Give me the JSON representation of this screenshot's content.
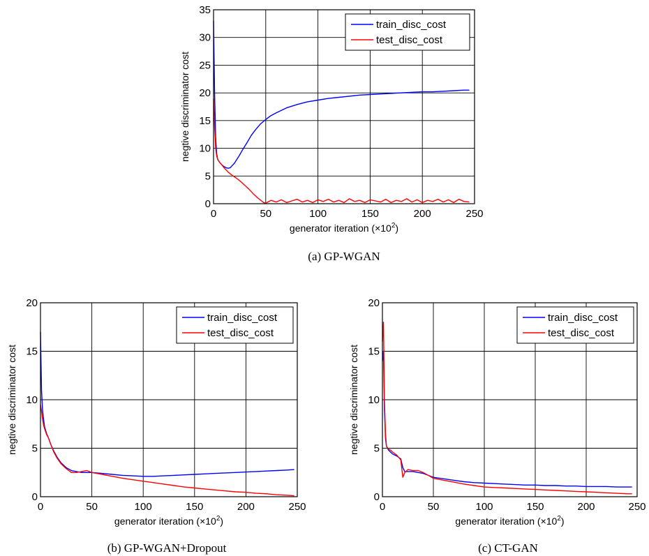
{
  "chart_data": [
    {
      "type": "line",
      "caption": "(a) GP-WGAN",
      "xlabel": "generator iteration (×10",
      "xlabel_sup": "2",
      "xlabel_close": ")",
      "ylabel": "negtive discriminator cost",
      "xlim": [
        0,
        250
      ],
      "ylim": [
        0,
        35
      ],
      "xticks": [
        0,
        50,
        100,
        150,
        200,
        250
      ],
      "yticks": [
        0,
        5,
        10,
        15,
        20,
        25,
        30,
        35
      ],
      "grid": true,
      "legend": "top-right",
      "series": [
        {
          "name": "train_disc_cost",
          "color": "#0000ff",
          "x": [
            0,
            1,
            2,
            3,
            4,
            6,
            8,
            10,
            12,
            14,
            16,
            18,
            20,
            22,
            25,
            28,
            32,
            36,
            40,
            45,
            50,
            55,
            60,
            70,
            80,
            90,
            100,
            110,
            120,
            130,
            140,
            150,
            160,
            170,
            180,
            190,
            200,
            210,
            220,
            230,
            240,
            245
          ],
          "y": [
            33,
            20,
            12,
            9,
            8,
            7.4,
            7,
            6.7,
            6.5,
            6.4,
            6.5,
            6.9,
            7.3,
            7.9,
            8.8,
            9.8,
            11,
            12.3,
            13.3,
            14.4,
            15.2,
            15.9,
            16.4,
            17.3,
            17.9,
            18.4,
            18.7,
            19.0,
            19.2,
            19.4,
            19.6,
            19.7,
            19.8,
            19.9,
            20.0,
            20.1,
            20.2,
            20.2,
            20.3,
            20.4,
            20.5,
            20.5
          ]
        },
        {
          "name": "test_disc_cost",
          "color": "#ff0000",
          "x": [
            0,
            1,
            2,
            3,
            4,
            6,
            8,
            10,
            14,
            18,
            22,
            26,
            30,
            34,
            38,
            42,
            46,
            48,
            50,
            55,
            60,
            65,
            70,
            75,
            80,
            85,
            90,
            95,
            100,
            105,
            110,
            115,
            120,
            125,
            130,
            135,
            140,
            145,
            150,
            155,
            160,
            165,
            170,
            175,
            180,
            185,
            190,
            195,
            200,
            205,
            210,
            215,
            220,
            225,
            230,
            235,
            240,
            245
          ],
          "y": [
            19,
            14,
            10,
            8.6,
            8,
            7.4,
            7.0,
            6.5,
            5.7,
            5.1,
            4.6,
            4.0,
            3.3,
            2.6,
            1.8,
            1.1,
            0.5,
            0.2,
            0.1,
            0.6,
            0.3,
            0.7,
            0.2,
            0.5,
            0.8,
            0.3,
            0.6,
            0.2,
            0.7,
            0.4,
            0.8,
            0.3,
            0.6,
            0.2,
            0.9,
            0.4,
            0.6,
            0.2,
            0.7,
            0.5,
            0.3,
            0.8,
            0.2,
            0.6,
            0.4,
            0.9,
            0.3,
            0.7,
            0.2,
            0.6,
            0.4,
            0.8,
            0.3,
            0.7,
            0.2,
            0.8,
            0.4,
            0.3
          ]
        }
      ]
    },
    {
      "type": "line",
      "caption": "(b) GP-WGAN+Dropout",
      "xlabel": "generator iteration (×10",
      "xlabel_sup": "2",
      "xlabel_close": ")",
      "ylabel": "negtive discriminator cost",
      "xlim": [
        0,
        250
      ],
      "ylim": [
        0,
        20
      ],
      "xticks": [
        0,
        50,
        100,
        150,
        200,
        250
      ],
      "yticks": [
        0,
        5,
        10,
        15,
        20
      ],
      "grid": true,
      "legend": "top-right",
      "series": [
        {
          "name": "train_disc_cost",
          "color": "#0000ff",
          "x": [
            0,
            1,
            2,
            3,
            4,
            6,
            8,
            10,
            13,
            16,
            20,
            25,
            30,
            35,
            40,
            45,
            50,
            60,
            70,
            80,
            90,
            100,
            110,
            120,
            130,
            140,
            150,
            160,
            170,
            180,
            190,
            200,
            210,
            220,
            230,
            240,
            247
          ],
          "y": [
            17,
            11,
            9,
            8,
            7.2,
            6.5,
            6.0,
            5.4,
            4.7,
            4.1,
            3.5,
            3.0,
            2.7,
            2.6,
            2.5,
            2.5,
            2.5,
            2.4,
            2.3,
            2.2,
            2.15,
            2.1,
            2.1,
            2.15,
            2.2,
            2.25,
            2.3,
            2.35,
            2.4,
            2.45,
            2.5,
            2.55,
            2.6,
            2.65,
            2.7,
            2.75,
            2.8
          ]
        },
        {
          "name": "test_disc_cost",
          "color": "#ff0000",
          "x": [
            0,
            1,
            2,
            3,
            4,
            6,
            8,
            10,
            13,
            16,
            20,
            25,
            30,
            35,
            40,
            45,
            50,
            60,
            70,
            80,
            90,
            100,
            110,
            120,
            130,
            140,
            150,
            160,
            170,
            180,
            190,
            200,
            210,
            220,
            230,
            240,
            247
          ],
          "y": [
            9.5,
            8.8,
            8.0,
            7.4,
            7.0,
            6.4,
            6.0,
            5.4,
            4.6,
            4.0,
            3.4,
            2.9,
            2.5,
            2.5,
            2.6,
            2.7,
            2.5,
            2.3,
            2.1,
            1.9,
            1.75,
            1.6,
            1.45,
            1.3,
            1.15,
            1.0,
            0.9,
            0.8,
            0.7,
            0.6,
            0.5,
            0.45,
            0.35,
            0.3,
            0.2,
            0.15,
            0.1
          ]
        }
      ]
    },
    {
      "type": "line",
      "caption": "(c) CT-GAN",
      "xlabel": "generator iteration (×10",
      "xlabel_sup": "2",
      "xlabel_close": ")",
      "ylabel": "negtive discriminator cost",
      "xlim": [
        0,
        250
      ],
      "ylim": [
        0,
        20
      ],
      "xticks": [
        0,
        50,
        100,
        150,
        200,
        250
      ],
      "yticks": [
        0,
        5,
        10,
        15,
        20
      ],
      "grid": true,
      "legend": "top-right",
      "series": [
        {
          "name": "train_disc_cost",
          "color": "#0000ff",
          "x": [
            0,
            1,
            2,
            3,
            4,
            6,
            8,
            10,
            14,
            18,
            20,
            22,
            25,
            30,
            35,
            40,
            45,
            50,
            60,
            70,
            80,
            90,
            100,
            110,
            120,
            130,
            140,
            150,
            160,
            170,
            180,
            190,
            200,
            210,
            220,
            230,
            240,
            245
          ],
          "y": [
            14,
            15,
            9,
            6,
            5.2,
            4.8,
            4.6,
            4.4,
            4.2,
            3.9,
            3.0,
            2.6,
            2.6,
            2.6,
            2.5,
            2.4,
            2.2,
            2.0,
            1.85,
            1.7,
            1.55,
            1.45,
            1.4,
            1.35,
            1.3,
            1.25,
            1.2,
            1.2,
            1.15,
            1.15,
            1.1,
            1.1,
            1.05,
            1.05,
            1.05,
            1.0,
            1.0,
            1.0
          ]
        },
        {
          "name": "test_disc_cost",
          "color": "#ff0000",
          "x": [
            0,
            1,
            2,
            3,
            4,
            6,
            8,
            10,
            14,
            18,
            20,
            22,
            25,
            30,
            35,
            40,
            45,
            50,
            60,
            70,
            80,
            90,
            100,
            110,
            120,
            130,
            140,
            150,
            160,
            170,
            180,
            190,
            200,
            210,
            220,
            230,
            240,
            245
          ],
          "y": [
            16,
            18,
            10,
            6.5,
            5.2,
            4.9,
            4.8,
            4.6,
            4.3,
            3.8,
            2.0,
            2.5,
            2.8,
            2.7,
            2.7,
            2.5,
            2.2,
            1.9,
            1.7,
            1.5,
            1.3,
            1.15,
            1.0,
            0.95,
            0.9,
            0.85,
            0.8,
            0.75,
            0.7,
            0.65,
            0.6,
            0.55,
            0.5,
            0.45,
            0.4,
            0.35,
            0.3,
            0.3
          ]
        }
      ]
    }
  ]
}
